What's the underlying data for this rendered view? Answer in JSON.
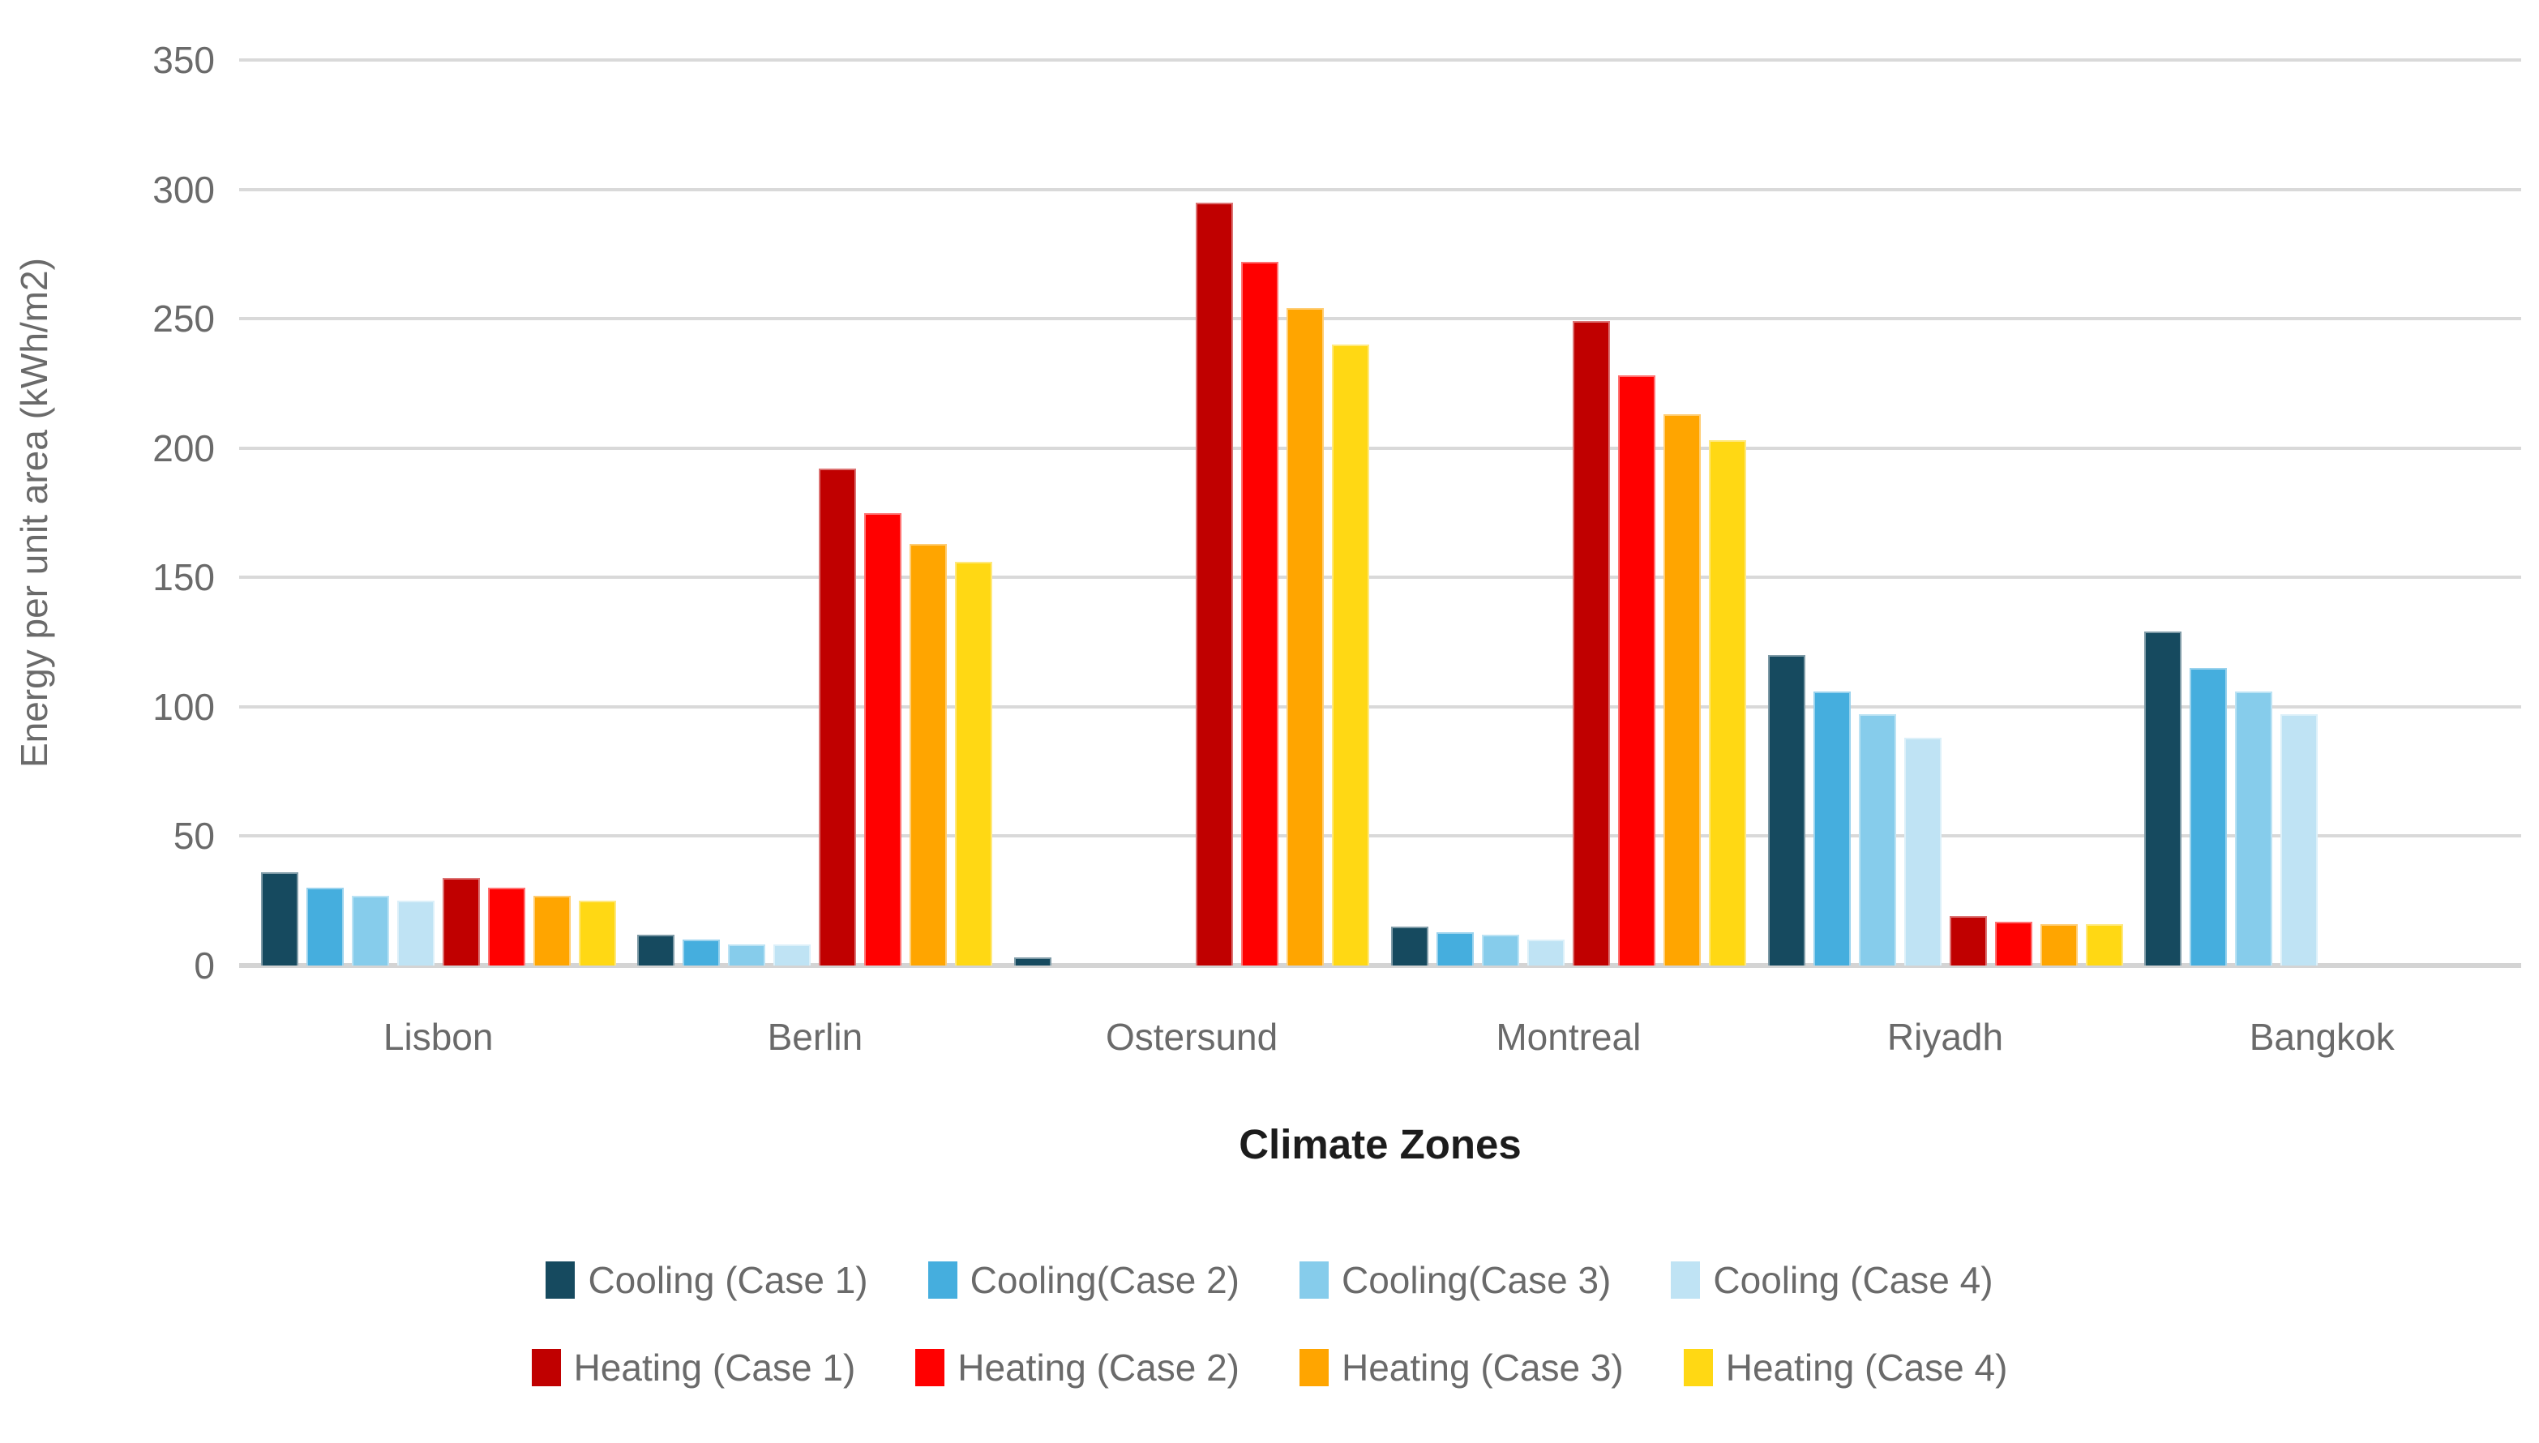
{
  "chart_data": {
    "type": "bar",
    "title": "",
    "xlabel": "Climate Zones",
    "ylabel": "Energy per unit area (kWh/m2)",
    "ylim": [
      0,
      350
    ],
    "ytick_step": 50,
    "yticks": [
      0,
      50,
      100,
      150,
      200,
      250,
      300,
      350
    ],
    "grid": "horizontal",
    "legend_position": "bottom",
    "legend_rows": 2,
    "categories": [
      "Lisbon",
      "Berlin",
      "Ostersund",
      "Montreal",
      "Riyadh",
      "Bangkok"
    ],
    "series": [
      {
        "name": "Cooling (Case 1)",
        "color": "#164A5F",
        "values": [
          36,
          12,
          3,
          15,
          120,
          129
        ]
      },
      {
        "name": "Cooling(Case 2)",
        "color": "#45AEDE",
        "values": [
          30,
          10,
          0,
          13,
          106,
          115
        ]
      },
      {
        "name": "Cooling(Case 3)",
        "color": "#86CCEB",
        "values": [
          27,
          8,
          0,
          12,
          97,
          106
        ]
      },
      {
        "name": "Cooling (Case 4)",
        "color": "#BFE3F4",
        "values": [
          25,
          8,
          0,
          10,
          88,
          97
        ]
      },
      {
        "name": "Heating (Case 1)",
        "color": "#C00000",
        "values": [
          34,
          192,
          295,
          249,
          19,
          0
        ]
      },
      {
        "name": "Heating (Case 2)",
        "color": "#FF0000",
        "values": [
          30,
          175,
          272,
          228,
          17,
          0
        ]
      },
      {
        "name": "Heating (Case 3)",
        "color": "#FFA500",
        "values": [
          27,
          163,
          254,
          213,
          16,
          0
        ]
      },
      {
        "name": "Heating (Case 4)",
        "color": "#FFD814",
        "values": [
          25,
          156,
          240,
          203,
          16,
          0
        ]
      }
    ],
    "colors": {
      "grid": "#D9D9D9",
      "axis_line": "#D4D4D4",
      "tick_label": "#6a6a6a",
      "axis_title": "#6a6a6a",
      "x_title": "#1c1c1c",
      "background": "#ffffff"
    }
  }
}
